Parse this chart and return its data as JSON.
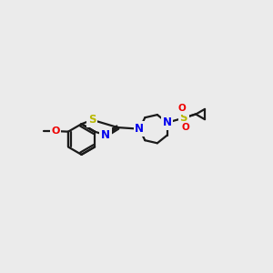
{
  "background_color": "#ebebeb",
  "bond_color": "#1a1a1a",
  "S_color": "#b8b800",
  "N_color": "#0000ee",
  "O_color": "#ee0000",
  "lw": 1.6,
  "fs": 8.0,
  "xlim": [
    0.45,
    1.9
  ],
  "ylim": [
    0.28,
    0.78
  ]
}
